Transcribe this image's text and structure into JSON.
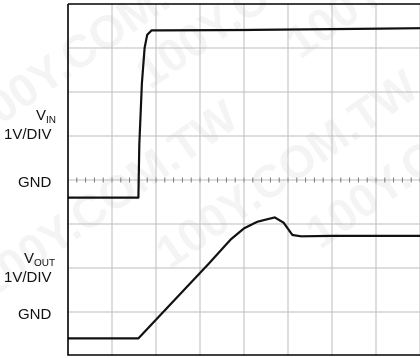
{
  "labels": {
    "vin_main": "V",
    "vin_sub": "IN",
    "vin_scale": "1V/DIV",
    "gnd_top": "GND",
    "vout_main": "V",
    "vout_sub": "OUT",
    "vout_scale": "1V/DIV",
    "gnd_bottom": "GND"
  },
  "watermark": "100Y.COM.TW",
  "colors": {
    "trace": "#111111",
    "grid": "#bdbdbd",
    "frame": "#000000"
  },
  "chart_data": {
    "type": "line",
    "title": "",
    "x_divisions": 8,
    "y_divisions": 8,
    "xlim": [
      0,
      8
    ],
    "ylim": [
      0,
      8
    ],
    "grid": true,
    "series": [
      {
        "name": "VIN",
        "x": [
          0,
          1.6,
          1.62,
          1.68,
          1.74,
          1.8,
          1.9,
          2.1,
          4,
          8
        ],
        "y": [
          3.6,
          3.6,
          4.8,
          6.2,
          7.0,
          7.3,
          7.4,
          7.4,
          7.41,
          7.45
        ]
      },
      {
        "name": "VOUT",
        "x": [
          0,
          1.6,
          2.4,
          3.2,
          3.7,
          4.0,
          4.3,
          4.5,
          4.7,
          4.9,
          5.1,
          5.3,
          6,
          8
        ],
        "y": [
          0.4,
          0.4,
          1.25,
          2.1,
          2.65,
          2.9,
          3.05,
          3.1,
          3.15,
          3.03,
          2.75,
          2.72,
          2.73,
          2.73
        ]
      }
    ]
  }
}
